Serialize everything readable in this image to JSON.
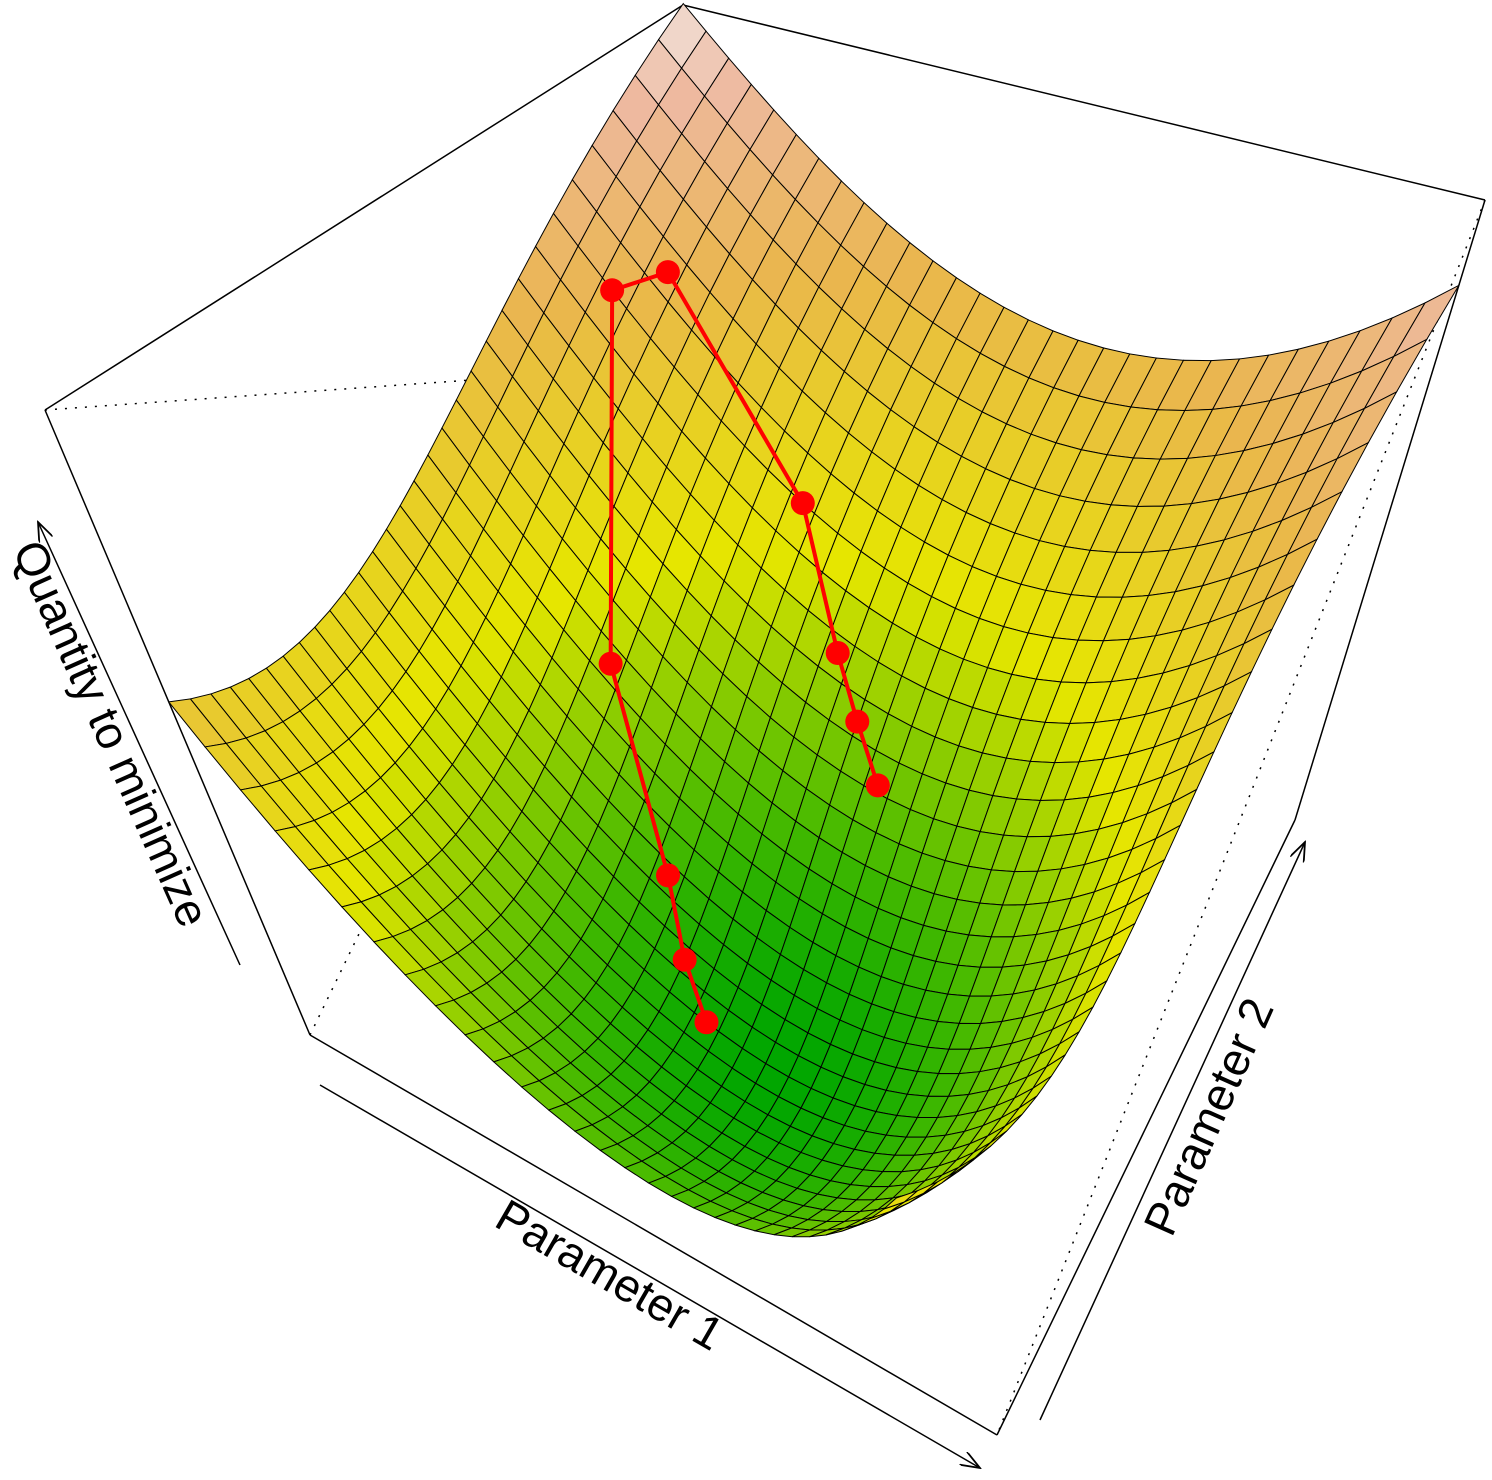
{
  "chart_data": {
    "type": "surface3d",
    "xlabel": "Parameter 1",
    "ylabel": "Parameter 2",
    "zlabel": "Quantity to minimize",
    "xlim": [
      0,
      1
    ],
    "ylim": [
      0,
      1
    ],
    "series": [
      {
        "color": "#ff0000",
        "x": [
          0.45,
          0.4,
          0.35,
          0.22,
          0.08,
          0.12,
          0.35,
          0.45,
          0.5,
          0.55
        ],
        "y": [
          0.3,
          0.35,
          0.42,
          0.55,
          0.8,
          0.85,
          0.8,
          0.72,
          0.68,
          0.64
        ]
      }
    ]
  }
}
